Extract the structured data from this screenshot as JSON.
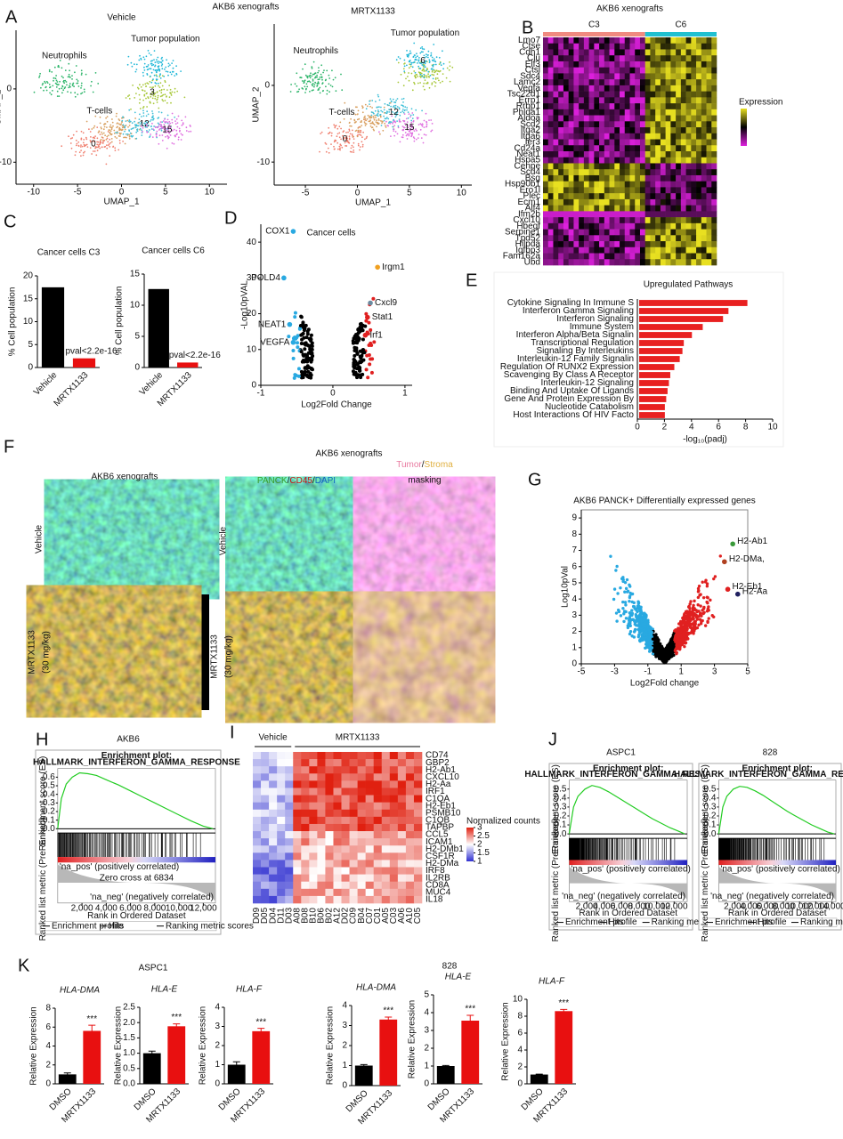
{
  "panel_labels": [
    "A",
    "B",
    "C",
    "D",
    "E",
    "F",
    "G",
    "H",
    "I",
    "J",
    "K"
  ],
  "figure": {
    "a_title": "AKB6 xenografts",
    "k_left": "ASPC1",
    "k_right": "828"
  },
  "panel_f": {
    "title_left": "AKB6 xenografts",
    "title_right": "AKB6 xenografts",
    "left_vehicle": "Vehicle",
    "left_mrtx": [
      "MRTX1133",
      "(30 mg/kg)"
    ],
    "right_vehicle": "Vehicle",
    "right_mrtx": [
      "MRTX1133",
      "(30 mg/kg)"
    ],
    "stain": [
      "PANCK",
      "/",
      "CD45",
      "/",
      "DAPI"
    ],
    "stain_colors": [
      "#3a9a2a",
      "#111",
      "#d01010",
      "#111",
      "#1060c0"
    ],
    "masking": [
      "Tumor",
      "/",
      "Stroma"
    ],
    "masking_colors": [
      "#e87aa0",
      "#111",
      "#e0b040"
    ],
    "masking_word": "masking"
  },
  "chart_data": [
    {
      "type": "umap",
      "title": "Vehicle",
      "xlabel": "UMAP_1",
      "ylabel": "UMAP_2",
      "xlim": [
        -12,
        12
      ],
      "xticks": [
        -10,
        -5,
        0,
        5,
        10
      ],
      "ylim": [
        -13,
        8
      ],
      "yticks": [
        -10,
        0
      ],
      "clusters": [
        {
          "x": -6.5,
          "y": 1,
          "color": "#2db56a"
        },
        {
          "name": "3",
          "x": 3.5,
          "y": -0.5,
          "color": "#a8c83a"
        },
        {
          "x": 4,
          "y": 3,
          "color": "#22b8d8"
        },
        {
          "name": "0",
          "x": -3.2,
          "y": -7.5,
          "color": "#f08070"
        },
        {
          "x": -0.8,
          "y": -5.5,
          "color": "#d8a060"
        },
        {
          "name": "12",
          "x": 2.6,
          "y": -4.8,
          "color": "#40c0d8"
        },
        {
          "name": "15",
          "x": 5.2,
          "y": -5.6,
          "color": "#e070e0"
        }
      ],
      "annotations": [
        {
          "text": "Neutrophils",
          "x": -6.5,
          "y": 4.5
        },
        {
          "text": "Tumor population",
          "x": 5,
          "y": 6.8
        },
        {
          "text": "T-cells",
          "x": -2.5,
          "y": -3
        }
      ]
    },
    {
      "type": "umap",
      "title": "MRTX1133",
      "xlabel": "UMAP_1",
      "ylabel": "UMAP_2",
      "xlim": [
        -8,
        11
      ],
      "xticks": [
        -5,
        0,
        5,
        10
      ],
      "ylim": [
        -13,
        8
      ],
      "yticks": [
        -10,
        0
      ],
      "clusters": [
        {
          "x": -4,
          "y": 0.5,
          "color": "#2db56a"
        },
        {
          "x": 6.5,
          "y": 1.5,
          "color": "#a8c83a"
        },
        {
          "name": "6",
          "x": 6.3,
          "y": 3.2,
          "color": "#22b8d8"
        },
        {
          "name": "0",
          "x": -1.2,
          "y": -7,
          "color": "#f08070"
        },
        {
          "x": 1,
          "y": -4.5,
          "color": "#d8a060"
        },
        {
          "name": "12",
          "x": 3.5,
          "y": -3.5,
          "color": "#40c0d8"
        },
        {
          "name": "15",
          "x": 5,
          "y": -5.5,
          "color": "#e070e0"
        }
      ],
      "annotations": [
        {
          "text": "Neutrophils",
          "x": -4,
          "y": 4.5
        },
        {
          "text": "Tumor population",
          "x": 6.5,
          "y": 6.8
        },
        {
          "text": "T-cells",
          "x": -1.5,
          "y": -3.5
        }
      ]
    },
    {
      "type": "heatmap",
      "title": "AKB6 xenografts",
      "groups": [
        "C3",
        "C6"
      ],
      "group_colors": [
        "#f08a80",
        "#20c0d0"
      ],
      "colorbar_label": "Expression",
      "colorbar_colors": [
        "#e020e0",
        "#000000",
        "#e8e020"
      ],
      "genes": [
        "Lmo7",
        "Ctse",
        "Cdh1",
        "Clu",
        "Elf3",
        "Ctsl",
        "Sdc4",
        "Lamc2",
        "Vegfa",
        "Tsc22d1",
        "Errp1",
        "Rrbp1",
        "Phlda1",
        "Aldoa",
        "Scd2",
        "Itga2",
        "Itga6",
        "Ier3",
        "Cd24a",
        "Neat1",
        "Hspa5",
        "Cenpe",
        "Scd4",
        "Bsg",
        "Hsp90b1",
        "Ero1l",
        "Plec",
        "Ecm1",
        "Alf4",
        "Ifm2b",
        "Cxcl10",
        "Hbegf",
        "Serpine1",
        "Tpd52",
        "Hilpda",
        "Igfbp3",
        "Fam162a",
        "Ubd"
      ]
    },
    {
      "type": "bar",
      "title": "Cancer cells C3",
      "ylabel": "% Cell population",
      "categories": [
        "Vehicle",
        "MRTX1133"
      ],
      "values": [
        17.5,
        2
      ],
      "colors": [
        "#000000",
        "#e81010"
      ],
      "ylim": [
        0,
        20
      ],
      "yticks": [
        0,
        5,
        10,
        15,
        20
      ],
      "annotation": "pval<2.2e-16"
    },
    {
      "type": "bar",
      "title": "Cancer cells C6",
      "ylabel": "% Cell population",
      "categories": [
        "Vehicle",
        "MRTX1133"
      ],
      "values": [
        12.6,
        0.8
      ],
      "colors": [
        "#000000",
        "#e81010"
      ],
      "ylim": [
        0,
        15
      ],
      "yticks": [
        0,
        5,
        10,
        15
      ],
      "annotation": "pval<2.2e-16"
    },
    {
      "type": "volcano",
      "title": "Cancer cells",
      "xlabel": "Log2Fold Change",
      "ylabel": "-Log10pVAL",
      "xlim": [
        -1,
        1.1
      ],
      "xticks": [
        -1,
        0,
        1
      ],
      "ylim": [
        0,
        45
      ],
      "yticks": [
        0,
        10,
        20,
        30,
        40
      ],
      "down_color": "#29a9e1",
      "up_color": "#e02020",
      "frame": false,
      "labels": [
        "COX1",
        "POLD4",
        "NEAT1",
        "VEGFA",
        "Irgm1",
        "Cxcl9",
        "Stat1",
        "Irf1"
      ],
      "x": [
        -0.55,
        -0.68,
        -0.6,
        -0.55,
        0.62,
        0.52,
        0.48,
        0.45
      ],
      "values": [
        43,
        30,
        17,
        12,
        33,
        23,
        19,
        14
      ],
      "point_colors": [
        "#29a9e1",
        "#29a9e1",
        "#29a9e1",
        "#29a9e1",
        "#f0a020",
        "#6a8aa0",
        "#e02020",
        "#e02020"
      ],
      "label_colors": [
        "#29a9e1",
        "#29a9e1",
        "#29a9e1",
        "#29a9e1",
        "#e02020",
        "#e02020",
        "#e02020",
        "#e02020"
      ]
    },
    {
      "type": "hbar",
      "title": "Upregulated Pathways",
      "xlabel": "-log₁₀(padj)",
      "color": "#e82020",
      "xlim": [
        0,
        10
      ],
      "xticks": [
        0,
        2,
        4,
        6,
        8,
        10
      ],
      "categories": [
        "Cytokine Signaling In Immune S",
        "Interferon Gamma Signaling",
        "Interferon Signaling",
        "Immune System",
        "Interferon Alpha/Beta Signalin",
        "Transcriptional Regulation",
        "Signaling By Interleukins",
        "Interleukin-12 Family Signalin",
        "Regulation Of RUNX2 Expression",
        "Scavenging By Class A Receptor",
        "Interleukin-12 Signaling",
        "Binding And Uptake Of Ligands",
        "Gene And Protein Expression By",
        "Nucleotide Catabolism",
        "Host Interactions Of HIV Facto"
      ],
      "values": [
        8.0,
        6.6,
        6.2,
        4.7,
        3.9,
        3.3,
        3.2,
        3.0,
        2.6,
        2.3,
        2.2,
        2.1,
        2.0,
        1.9,
        1.9
      ]
    },
    {
      "type": "volcano",
      "title": "AKB6 PANCK+ Differentially expressed genes",
      "xlabel": "Log2Fold change",
      "ylabel": "Log10pVal",
      "xlim": [
        -5,
        5
      ],
      "xticks": [
        -5,
        -3,
        -1,
        1,
        3,
        5
      ],
      "ylim": [
        0,
        9.5
      ],
      "yticks": [
        0,
        1,
        2,
        3,
        4,
        5,
        6,
        7,
        8,
        9
      ],
      "down_color": "#29a9e1",
      "up_color": "#e02020",
      "frame": true,
      "labels": [
        "H2-Ab1",
        "H2-DMa,",
        "H2-Eb1",
        "H2-Aa"
      ],
      "x": [
        4.1,
        3.6,
        3.8,
        4.4
      ],
      "values": [
        7.4,
        6.3,
        4.6,
        4.3
      ],
      "point_colors": [
        "#3a9a3a",
        "#b04020",
        "#e02020",
        "#202060"
      ],
      "label_colors": [
        "#e02020",
        "#e02020",
        "#e02020",
        "#e02020"
      ]
    },
    {
      "type": "gsea",
      "title": "AKB6",
      "plot_title": [
        "Enrichment plot:",
        "HALLMARK_INTERFERON_GAMMA_RESPONSE"
      ],
      "ylabel": "Enrichment score (ES)",
      "ylabel2": "Ranked list metric (PreRanked)",
      "xlabel": "Rank in Ordered Dataset",
      "color": "#22cc22",
      "x": [
        0,
        300,
        700,
        1200,
        1800,
        2500,
        3200,
        4000,
        5000,
        6000,
        7000,
        8000,
        9000,
        10000,
        11000,
        12000,
        12800
      ],
      "values": [
        0,
        0.35,
        0.52,
        0.6,
        0.65,
        0.64,
        0.62,
        0.57,
        0.51,
        0.44,
        0.37,
        0.3,
        0.23,
        0.16,
        0.09,
        0.03,
        0
      ],
      "xlim": [
        0,
        13000
      ],
      "xticks": [
        {
          "value": 2000,
          "label": "2,000"
        },
        {
          "value": 4000,
          "label": "4,000"
        },
        {
          "value": 6000,
          "label": "6,000"
        },
        {
          "value": 8000,
          "label": "8,000"
        },
        {
          "value": 10000,
          "label": "10,000"
        },
        {
          "value": 12000,
          "label": "12,000"
        }
      ],
      "ylim": [
        -0.05,
        0.7
      ],
      "yticks": [
        {
          "value": 0,
          "label": "0.0"
        },
        {
          "value": 0.1,
          "label": "0.1"
        },
        {
          "value": 0.2,
          "label": "0.2"
        },
        {
          "value": 0.3,
          "label": "0.3"
        },
        {
          "value": 0.4,
          "label": "0.4"
        },
        {
          "value": 0.5,
          "label": "0.5"
        },
        {
          "value": 0.6,
          "label": "0.6"
        }
      ],
      "pos_label": "'na_pos' (positively correlated)",
      "neg_label": "'na_neg' (negatively correlated)",
      "zero_cross": "Zero cross at 6834",
      "legend": [
        "Enrichment profile",
        "Hits",
        "Ranking metric scores"
      ]
    },
    {
      "type": "heatmap",
      "groups": [
        "Vehicle",
        "MRTX1133"
      ],
      "group_sizes": [
        5,
        16
      ],
      "colorbar_label": "Normalized counts",
      "colorbar_colors": [
        "#3030d0",
        "#ffffff",
        "#e02010"
      ],
      "colorbar_ticks": [
        1,
        1.5,
        2,
        2.5,
        3
      ],
      "genes": [
        "CD74",
        "GBP2",
        "H2-Ab1",
        "CXCL10",
        "H2-Aa",
        "IRF1",
        "C1QA",
        "H2-Eb1",
        "PSMB10",
        "C1QB",
        "TAPBP",
        "CCL5",
        "ICAM1",
        "H2-DMb1",
        "CSF1R",
        "H2-DMa",
        "IRF8",
        "IL2RB",
        "CD8A",
        "MUC4",
        "IL18"
      ],
      "samples": [
        "D09",
        "D05",
        "D04",
        "D11",
        "D03",
        "A08",
        "B08",
        "B10",
        "B06",
        "B02",
        "A12",
        "D02",
        "C09",
        "B04",
        "C07",
        "C01",
        "A05",
        "C03",
        "A06",
        "A10",
        "C05"
      ]
    },
    {
      "type": "gsea",
      "title": "ASPC1",
      "plot_title": [
        "Enrichment plot:",
        "HALLMARK_INTERFERON_GAMMA_RESPONSE"
      ],
      "ylabel": "Enrichment score (ES)",
      "ylabel2": "Ranked list metric (PreRanked)",
      "xlabel": "Rank in Ordered Dataset",
      "color": "#22cc22",
      "x": [
        0,
        500,
        1000,
        1800,
        2600,
        3500,
        4500,
        5500,
        6500,
        7500,
        8500,
        9500,
        10500,
        11500,
        12500,
        13200
      ],
      "values": [
        0,
        0.3,
        0.42,
        0.5,
        0.54,
        0.52,
        0.47,
        0.41,
        0.35,
        0.29,
        0.23,
        0.17,
        0.12,
        0.07,
        0.03,
        0
      ],
      "xlim": [
        0,
        13500
      ],
      "xticks": [
        {
          "value": 2000,
          "label": "2,000"
        },
        {
          "value": 4000,
          "label": "4,000"
        },
        {
          "value": 6000,
          "label": "6,000"
        },
        {
          "value": 8000,
          "label": "8,000"
        },
        {
          "value": 10000,
          "label": "10,000"
        },
        {
          "value": 12000,
          "label": "12,000"
        }
      ],
      "ylim": [
        -0.05,
        0.6
      ],
      "yticks": [
        {
          "value": 0,
          "label": "0.0"
        },
        {
          "value": 0.1,
          "label": "0.1"
        },
        {
          "value": 0.2,
          "label": "0.2"
        },
        {
          "value": 0.3,
          "label": "0.3"
        },
        {
          "value": 0.4,
          "label": "0.4"
        },
        {
          "value": 0.5,
          "label": "0.5"
        }
      ],
      "pos_label": "'na_pos' (positively correlated)",
      "neg_label": "'na_neg' (negatively correlated)",
      "legend": [
        "Enrichment profile",
        "Hits",
        "Ranking metric scores"
      ]
    },
    {
      "type": "gsea",
      "title": "828",
      "plot_title": [
        "Enrichment plot:",
        "HALLMARK_INTERFERON_GAMMA_RESPONSE"
      ],
      "ylabel": "Enrichment score (ES)",
      "ylabel2": "Ranked list metric (PreRanked)",
      "xlabel": "Rank in Ordered Dataset",
      "color": "#22cc22",
      "x": [
        0,
        500,
        1000,
        1800,
        2600,
        3500,
        4500,
        5500,
        6500,
        7500,
        8500,
        9500,
        10500,
        11500,
        12500,
        13500,
        14300
      ],
      "values": [
        0,
        0.3,
        0.42,
        0.5,
        0.53,
        0.52,
        0.48,
        0.43,
        0.37,
        0.31,
        0.25,
        0.2,
        0.15,
        0.1,
        0.06,
        0.02,
        0
      ],
      "xlim": [
        0,
        14500
      ],
      "xticks": [
        {
          "value": 2000,
          "label": "2,000"
        },
        {
          "value": 4000,
          "label": "4,000"
        },
        {
          "value": 6000,
          "label": "6,000"
        },
        {
          "value": 8000,
          "label": "8,000"
        },
        {
          "value": 10000,
          "label": "10,000"
        },
        {
          "value": 12000,
          "label": "12,000"
        },
        {
          "value": 14000,
          "label": "14,000"
        }
      ],
      "ylim": [
        -0.05,
        0.6
      ],
      "yticks": [
        {
          "value": 0,
          "label": "0.0"
        },
        {
          "value": 0.1,
          "label": "0.1"
        },
        {
          "value": 0.2,
          "label": "0.2"
        },
        {
          "value": 0.3,
          "label": "0.3"
        },
        {
          "value": 0.4,
          "label": "0.4"
        },
        {
          "value": 0.5,
          "label": "0.5"
        }
      ],
      "pos_label": "'na_pos' (positively correlated)",
      "neg_label": "'na_neg' (negatively correlated)",
      "legend": [
        "Enrichment profile",
        "Hits",
        "Ranking metric scores"
      ]
    },
    {
      "type": "bar",
      "title": "HLA-DMA",
      "title_style": "italic",
      "ylabel": "Relative Expression",
      "categories": [
        "DMSO",
        "MRTX1133"
      ],
      "values": [
        1,
        5.6
      ],
      "errors": [
        0.15,
        0.6
      ],
      "colors": [
        "#000000",
        "#e81010"
      ],
      "ylim": [
        0,
        8
      ],
      "yticks": [
        0,
        2,
        4,
        6,
        8
      ],
      "annotation": "***"
    },
    {
      "type": "bar",
      "title": "HLA-E",
      "title_style": "italic",
      "ylabel": "Relative Expression",
      "categories": [
        "DMSO",
        "MRTX1133"
      ],
      "values": [
        1,
        1.88
      ],
      "errors": [
        0.07,
        0.08
      ],
      "colors": [
        "#000000",
        "#e81010"
      ],
      "ylim": [
        0,
        2.5
      ],
      "yticks": [
        {
          "value": 0,
          "label": "0.0"
        },
        {
          "value": 0.5,
          "label": "0.5"
        },
        {
          "value": 1,
          "label": "1.0"
        },
        {
          "value": 1.5,
          "label": "1.5"
        },
        {
          "value": 2,
          "label": "2.0"
        },
        {
          "value": 2.5,
          "label": "2.5"
        }
      ],
      "annotation": "***"
    },
    {
      "type": "bar",
      "title": "HLA-F",
      "title_style": "italic",
      "ylabel": "Relative Expression",
      "categories": [
        "DMSO",
        "MRTX1133"
      ],
      "values": [
        1,
        2.75
      ],
      "errors": [
        0.15,
        0.15
      ],
      "colors": [
        "#000000",
        "#e81010"
      ],
      "ylim": [
        0,
        4
      ],
      "yticks": [
        0,
        1,
        2,
        3,
        4
      ],
      "annotation": "***"
    },
    {
      "type": "bar",
      "title": "HLA-DMA",
      "title_style": "italic",
      "ylabel": "Relative Expression",
      "categories": [
        "DMSO",
        "MRTX1133"
      ],
      "values": [
        1,
        3.3
      ],
      "errors": [
        0.05,
        0.12
      ],
      "colors": [
        "#000000",
        "#e81010"
      ],
      "ylim": [
        0,
        4
      ],
      "yticks": [
        0,
        1,
        2,
        3,
        4
      ],
      "annotation": "***"
    },
    {
      "type": "bar",
      "title": "HLA-E",
      "title_style": "italic",
      "ylabel": "Relative Expression",
      "categories": [
        "DMSO",
        "MRTX1133"
      ],
      "values": [
        1,
        3.55
      ],
      "errors": [
        0.03,
        0.3
      ],
      "colors": [
        "#000000",
        "#e81010"
      ],
      "ylim": [
        0,
        5
      ],
      "yticks": [
        0,
        1,
        2,
        3,
        4,
        5
      ],
      "annotation": "***"
    },
    {
      "type": "bar",
      "title": "HLA-F",
      "title_style": "italic",
      "ylabel": "Relative Expression",
      "categories": [
        "DMSO",
        "MRTX1133"
      ],
      "values": [
        1.1,
        8.6
      ],
      "errors": [
        0.05,
        0.2
      ],
      "colors": [
        "#000000",
        "#e81010"
      ],
      "ylim": [
        0,
        10
      ],
      "yticks": [
        0,
        2,
        4,
        6,
        8,
        10
      ],
      "annotation": "***"
    }
  ]
}
